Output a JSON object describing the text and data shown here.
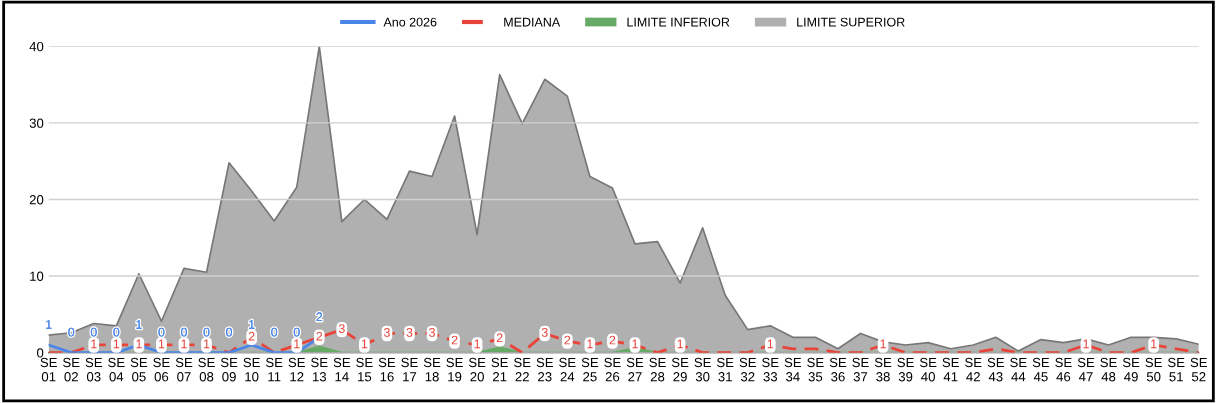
{
  "chart_data": {
    "type": "area",
    "categories": [
      "SE\n01",
      "SE\n02",
      "SE\n03",
      "SE\n04",
      "SE\n05",
      "SE\n06",
      "SE\n07",
      "SE\n08",
      "SE\n09",
      "SE\n10",
      "SE\n11",
      "SE\n12",
      "SE\n13",
      "SE\n14",
      "SE\n15",
      "SE\n16",
      "SE\n17",
      "SE\n18",
      "SE\n19",
      "SE\n20",
      "SE\n21",
      "SE\n22",
      "SE\n23",
      "SE\n24",
      "SE\n25",
      "SE\n26",
      "SE\n27",
      "SE\n28",
      "SE\n29",
      "SE\n30",
      "SE\n31",
      "SE\n32",
      "SE\n33",
      "SE\n34",
      "SE\n35",
      "SE\n36",
      "SE\n37",
      "SE\n38",
      "SE\n39",
      "SE\n40",
      "SE\n41",
      "SE\n42",
      "SE\n43",
      "SE\n44",
      "SE\n45",
      "SE\n46",
      "SE\n47",
      "SE\n48",
      "SE\n49",
      "SE\n50",
      "SE\n51",
      "SE\n52"
    ],
    "series": [
      {
        "name": "LIMITE SUPERIOR",
        "type": "area",
        "color": "#b0b0b0",
        "values": [
          2.3,
          2.6,
          3.8,
          3.5,
          10.3,
          4.1,
          11,
          10.5,
          24.8,
          21.1,
          17.2,
          21.6,
          40,
          17.1,
          20,
          17.4,
          23.7,
          23,
          30.9,
          15.4,
          36.3,
          29.9,
          35.7,
          33.5,
          23,
          21.5,
          14.2,
          14.5,
          9.1,
          16.3,
          7.5,
          3,
          3.5,
          2,
          2,
          0.5,
          2.5,
          1.4,
          1,
          1.3,
          0.5,
          1,
          2,
          0.2,
          1.7,
          1.3,
          1.8,
          1,
          2,
          2,
          1.8,
          1.1
        ]
      },
      {
        "name": "LIMITE INFERIOR",
        "type": "area",
        "color": "#66aa66",
        "values": [
          0,
          0,
          0,
          0,
          0,
          0,
          0,
          0,
          0,
          0,
          0,
          0,
          0.8,
          0,
          0,
          0,
          0,
          0,
          0,
          0,
          0.7,
          0,
          0,
          0,
          0,
          0,
          0.6,
          0,
          0,
          0,
          0,
          0,
          0,
          0,
          0,
          0,
          0,
          0,
          0,
          0,
          0,
          0,
          0,
          0,
          0,
          0,
          0,
          0,
          0,
          0,
          0,
          0
        ]
      },
      {
        "name": "MEDIANA",
        "type": "line",
        "line_style": "dashed",
        "color": "#e8443a",
        "values": [
          0,
          0,
          1,
          1,
          1,
          1,
          1,
          1,
          0,
          2,
          0,
          1,
          2,
          3,
          1,
          2.5,
          2.5,
          2.5,
          1.5,
          1,
          1.8,
          0,
          2.5,
          1.5,
          1,
          1.5,
          1,
          0,
          1,
          0,
          0,
          0,
          1,
          0.5,
          0.5,
          0,
          0,
          1,
          0,
          0,
          0,
          0,
          0.5,
          0,
          0,
          0,
          1,
          0,
          0,
          1,
          0.5,
          0
        ],
        "value_labels": [
          null,
          null,
          "1",
          "1",
          "1",
          "1",
          "1",
          "1",
          null,
          "2",
          null,
          "1",
          "2",
          "3",
          "1",
          "3",
          "3",
          "3",
          "2",
          "1",
          "2",
          null,
          "3",
          "2",
          "1",
          "2",
          "1",
          null,
          "1",
          null,
          null,
          null,
          "1",
          null,
          null,
          null,
          null,
          "1",
          null,
          null,
          null,
          null,
          null,
          null,
          null,
          null,
          "1",
          null,
          null,
          "1",
          null,
          null
        ]
      },
      {
        "name": "Ano 2026",
        "type": "line",
        "line_style": "solid",
        "color": "#4a86e8",
        "values": [
          1,
          0,
          0,
          0,
          1,
          0,
          0,
          0,
          0,
          1,
          0,
          0,
          2,
          null,
          null,
          null,
          null,
          null,
          null,
          null,
          null,
          null,
          null,
          null,
          null,
          null,
          null,
          null,
          null,
          null,
          null,
          null,
          null,
          null,
          null,
          null,
          null,
          null,
          null,
          null,
          null,
          null,
          null,
          null,
          null,
          null,
          null,
          null,
          null,
          null,
          null,
          null
        ],
        "value_labels": [
          "1",
          "0",
          "0",
          "0",
          "1",
          "0",
          "0",
          "0",
          "0",
          "1",
          "0",
          "0",
          "2",
          null,
          null,
          null,
          null,
          null,
          null,
          null,
          null,
          null,
          null,
          null,
          null,
          null,
          null,
          null,
          null,
          null,
          null,
          null,
          null,
          null,
          null,
          null,
          null,
          null,
          null,
          null,
          null,
          null,
          null,
          null,
          null,
          null,
          null,
          null,
          null,
          null,
          null,
          null
        ]
      }
    ],
    "ylim": [
      0,
      40
    ],
    "yticks": [
      0,
      10,
      20,
      30,
      40
    ],
    "grid": "y",
    "legend": "top",
    "marker": "none"
  }
}
